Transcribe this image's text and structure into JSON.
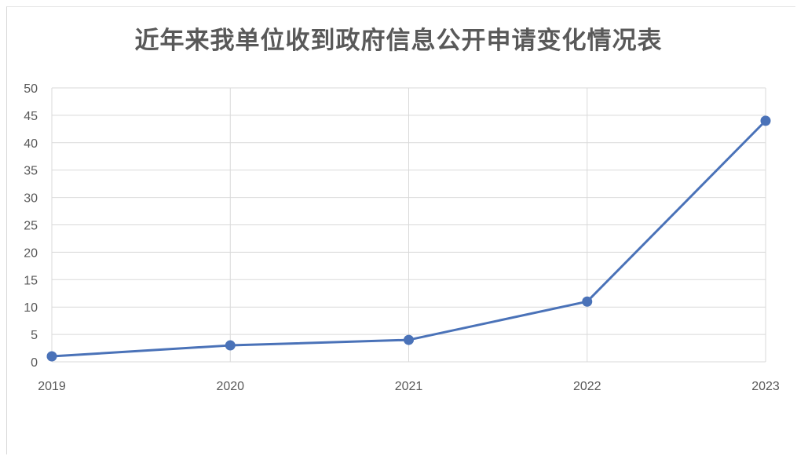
{
  "chart_data": {
    "type": "line",
    "title": "近年来我单位收到政府信息公开申请变化情况表",
    "xlabel": "",
    "ylabel": "",
    "categories": [
      "2019",
      "2020",
      "2021",
      "2022",
      "2023"
    ],
    "series": [
      {
        "values": [
          1,
          3,
          4,
          11,
          44
        ]
      }
    ],
    "ylim": [
      0,
      50
    ],
    "yticks": [
      "0",
      "5",
      "10",
      "15",
      "20",
      "25",
      "30",
      "35",
      "40",
      "45",
      "50"
    ],
    "grid": true,
    "legend": "none",
    "colors": {
      "line": "#4a72b8",
      "grid": "#d9d9d9",
      "text": "#595959"
    }
  }
}
